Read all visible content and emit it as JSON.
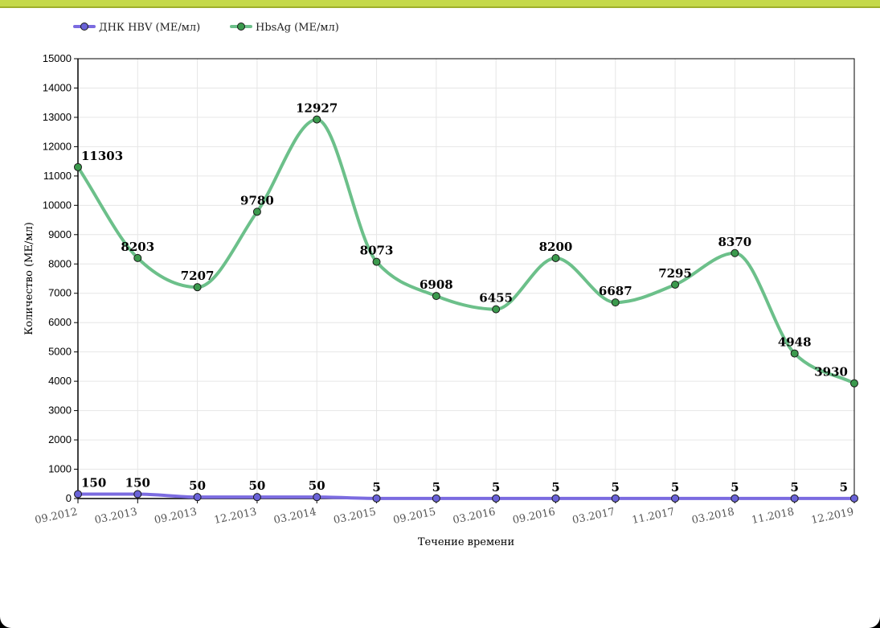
{
  "chart_data": {
    "type": "line",
    "categories": [
      "09.2012",
      "03.2013",
      "09.2013",
      "12.2013",
      "03.2014",
      "03.2015",
      "09.2015",
      "03.2016",
      "09.2016",
      "03.2017",
      "11.2017",
      "03.2018",
      "11.2018",
      "12.2019"
    ],
    "series": [
      {
        "name": "ДНК HBV (МЕ/мл)",
        "color": "#7b6be0",
        "marker_color": "#6a63d8",
        "values": [
          150,
          150,
          50,
          50,
          50,
          5,
          5,
          5,
          5,
          5,
          5,
          5,
          5,
          5
        ]
      },
      {
        "name": "HbsAg (МЕ/мл)",
        "color": "#6cc08a",
        "marker_color": "#3b9a4d",
        "values": [
          11303,
          8203,
          7207,
          9780,
          12927,
          8073,
          6908,
          6455,
          8200,
          6687,
          7295,
          8370,
          4948,
          3930
        ]
      }
    ],
    "xlabel": "Течение времени",
    "ylabel": "Количество (МЕ/мл)",
    "ylim": [
      0,
      15000
    ],
    "yticks": [
      0,
      1000,
      2000,
      3000,
      4000,
      5000,
      6000,
      7000,
      8000,
      9000,
      10000,
      11000,
      12000,
      13000,
      14000,
      15000
    ],
    "grid": true,
    "legend_position": "top-left",
    "smooth": true
  }
}
